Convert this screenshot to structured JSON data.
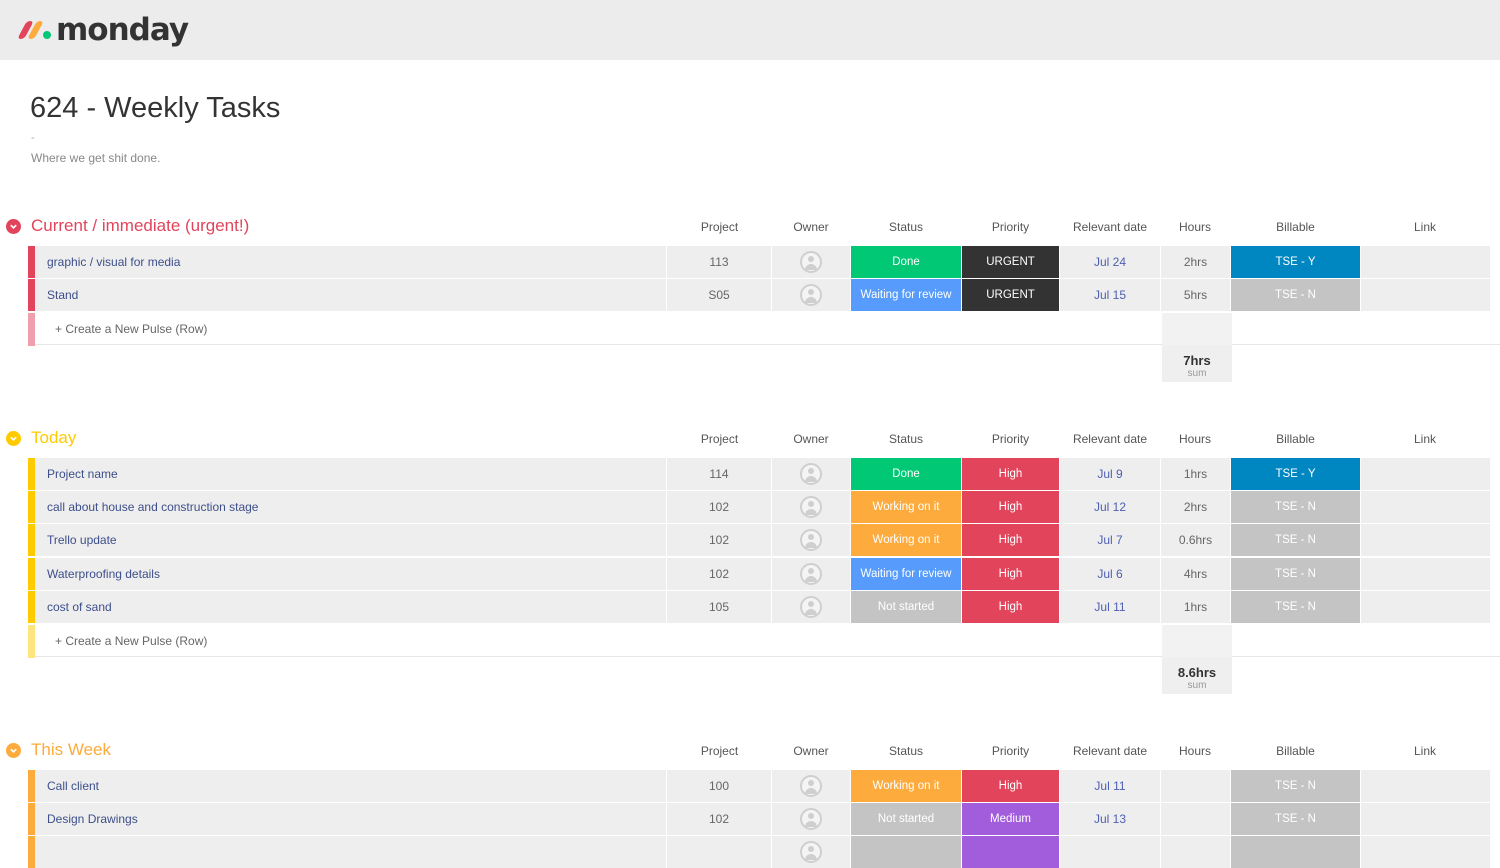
{
  "app": {
    "logo_text": "monday"
  },
  "board": {
    "title": "624 - Weekly Tasks",
    "dash": "-",
    "description": "Where we get shit done."
  },
  "columns": [
    "Project",
    "Owner",
    "Status",
    "Priority",
    "Relevant date",
    "Hours",
    "Billable",
    "Link"
  ],
  "colors": {
    "done": "#00c875",
    "waiting": "#579bfc",
    "working": "#fdab3d",
    "not_started": "#c4c4c4",
    "urgent": "#333333",
    "high": "#e2445c",
    "medium": "#a25ddc",
    "tse_y": "#0086c0",
    "tse_n": "#c4c4c4",
    "group_current": "#e2445c",
    "group_today": "#ffcb00",
    "group_week": "#fdab3d"
  },
  "groups": [
    {
      "title": "Current / immediate (urgent!)",
      "new_row": "+ Create a New Pulse (Row)",
      "sum_value": "7hrs",
      "sum_label": "sum",
      "rows": [
        {
          "name": "graphic / visual for media",
          "project": "113",
          "status": "Done",
          "priority": "URGENT",
          "date": "Jul 24",
          "hours": "2hrs",
          "billable": "TSE - Y"
        },
        {
          "name": "Stand",
          "project": "S05",
          "status": "Waiting for review",
          "priority": "URGENT",
          "date": "Jul 15",
          "hours": "5hrs",
          "billable": "TSE - N"
        }
      ]
    },
    {
      "title": "Today",
      "new_row": "+ Create a New Pulse (Row)",
      "sum_value": "8.6hrs",
      "sum_label": "sum",
      "rows": [
        {
          "name": "Project name",
          "project": "114",
          "status": "Done",
          "priority": "High",
          "date": "Jul 9",
          "hours": "1hrs",
          "billable": "TSE - Y"
        },
        {
          "name": "call about house and construction stage",
          "project": "102",
          "status": "Working on it",
          "priority": "High",
          "date": "Jul 12",
          "hours": "2hrs",
          "billable": "TSE - N"
        },
        {
          "name": "Trello update",
          "project": "102",
          "status": "Working on it",
          "priority": "High",
          "date": "Jul 7",
          "hours": "0.6hrs",
          "billable": "TSE - N"
        },
        {
          "name": "Waterproofing details",
          "project": "102",
          "status": "Waiting for review",
          "priority": "High",
          "date": "Jul 6",
          "hours": "4hrs",
          "billable": "TSE - N"
        },
        {
          "name": "cost of sand",
          "project": "105",
          "status": "Not started",
          "priority": "High",
          "date": "Jul 11",
          "hours": "1hrs",
          "billable": "TSE - N"
        }
      ]
    },
    {
      "title": "This Week",
      "rows": [
        {
          "name": "Call client",
          "project": "100",
          "status": "Working on it",
          "priority": "High",
          "date": "Jul 11",
          "hours": "",
          "billable": "TSE - N"
        },
        {
          "name": "Design Drawings",
          "project": "102",
          "status": "Not started",
          "priority": "Medium",
          "date": "Jul 13",
          "hours": "",
          "billable": "TSE - N"
        }
      ]
    }
  ]
}
